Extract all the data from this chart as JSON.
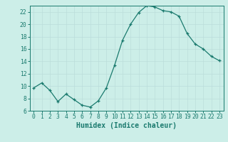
{
  "x": [
    0,
    1,
    2,
    3,
    4,
    5,
    6,
    7,
    8,
    9,
    10,
    11,
    12,
    13,
    14,
    15,
    16,
    17,
    18,
    19,
    20,
    21,
    22,
    23
  ],
  "y": [
    9.7,
    10.5,
    9.3,
    7.5,
    8.7,
    7.8,
    6.9,
    6.6,
    7.6,
    9.7,
    13.3,
    17.4,
    20.0,
    21.9,
    23.0,
    22.8,
    22.2,
    22.0,
    21.3,
    18.5,
    16.8,
    16.0,
    14.8,
    14.1
  ],
  "xlabel": "Humidex (Indice chaleur)",
  "ylim": [
    6,
    23
  ],
  "xlim": [
    -0.5,
    23.5
  ],
  "yticks": [
    6,
    8,
    10,
    12,
    14,
    16,
    18,
    20,
    22
  ],
  "xticks": [
    0,
    1,
    2,
    3,
    4,
    5,
    6,
    7,
    8,
    9,
    10,
    11,
    12,
    13,
    14,
    15,
    16,
    17,
    18,
    19,
    20,
    21,
    22,
    23
  ],
  "line_color": "#1a7a6e",
  "marker": "+",
  "bg_color": "#cceee8",
  "grid_color": "#bbddda",
  "axis_color": "#1a7a6e",
  "tick_fontsize": 5.8,
  "label_fontsize": 7.0
}
